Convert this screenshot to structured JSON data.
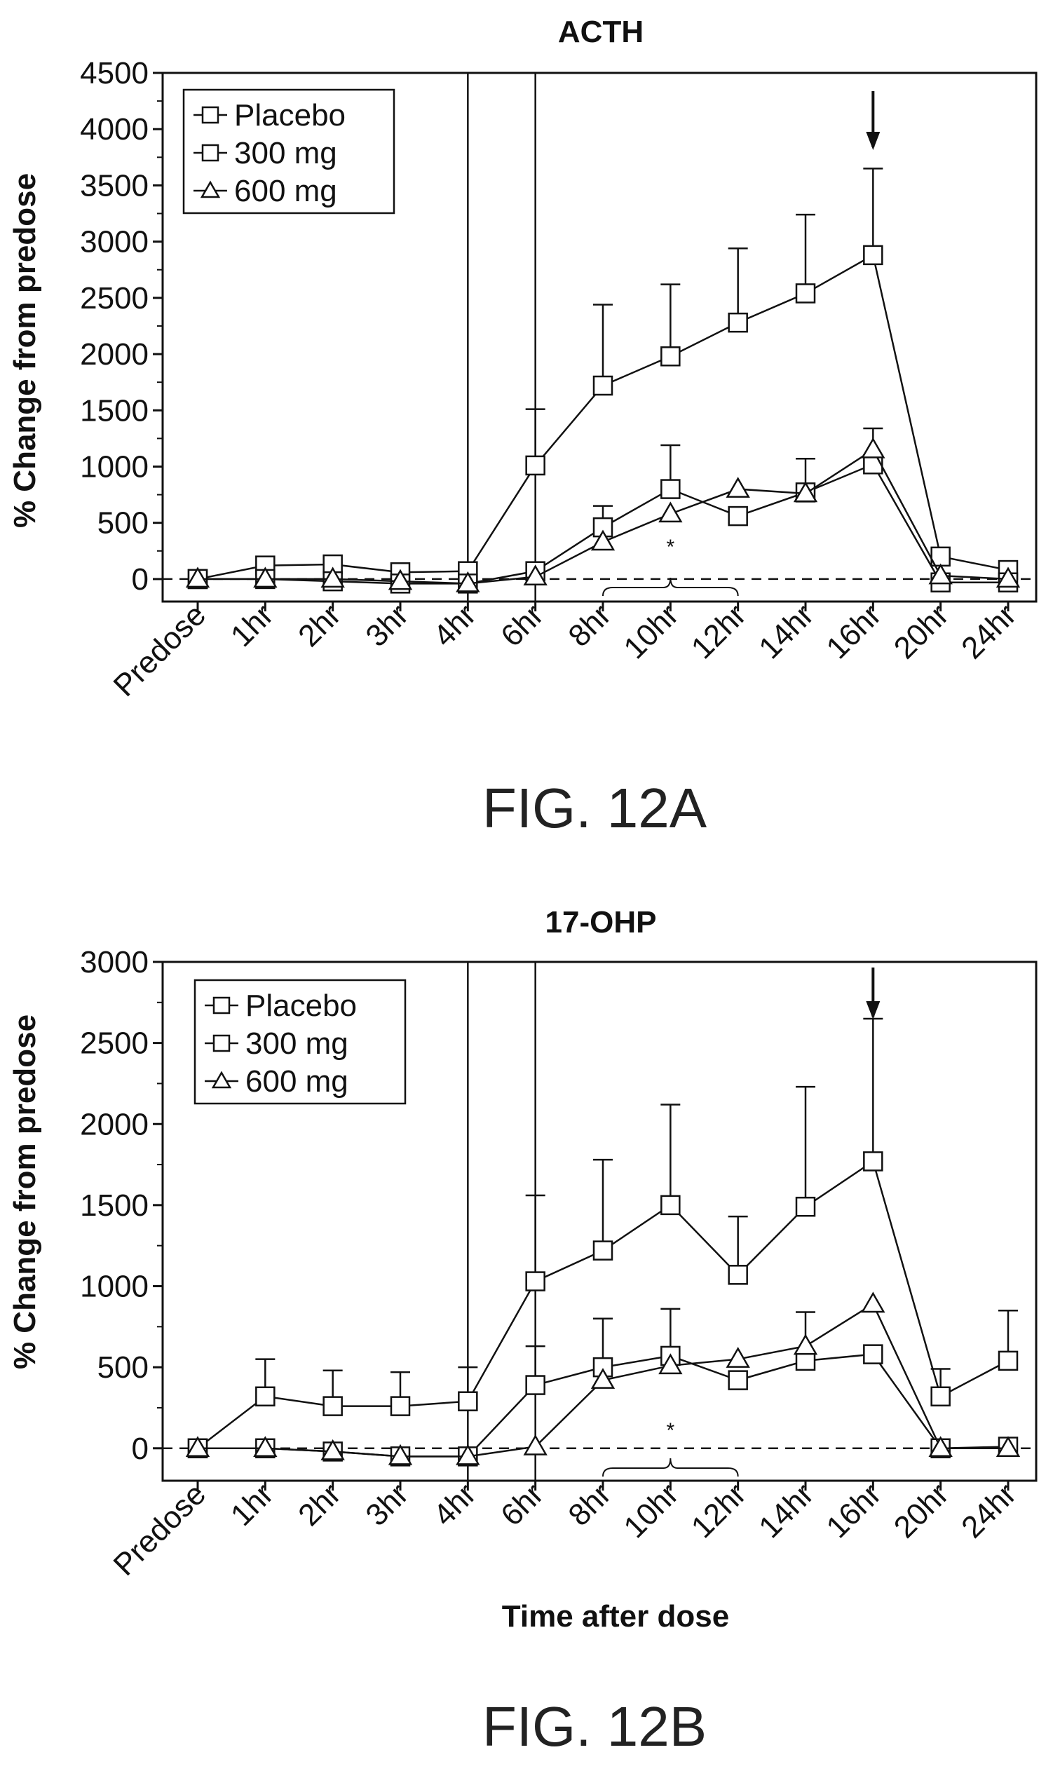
{
  "chart_data": [
    {
      "type": "line",
      "title": "ACTH",
      "xlabel": "",
      "ylabel": "% Change from predose",
      "ylim": [
        0,
        4500
      ],
      "yticks": [
        0,
        500,
        1000,
        1500,
        2000,
        2500,
        3000,
        3500,
        4000,
        4500
      ],
      "categories": [
        "Predose",
        "1hr",
        "2hr",
        "3hr",
        "4hr",
        "6hr",
        "8hr",
        "10hr",
        "12hr",
        "14hr",
        "16hr",
        "20hr",
        "24hr"
      ],
      "legend_position": "top-left",
      "figure_label": "FIG. 12A",
      "annotation": "*",
      "series": [
        {
          "name": "Placebo",
          "marker": "square",
          "values": [
            0,
            120,
            130,
            60,
            70,
            1010,
            1720,
            1980,
            2280,
            2540,
            2880,
            200,
            80
          ],
          "error": [
            0,
            0,
            0,
            0,
            0,
            500,
            720,
            640,
            660,
            700,
            770,
            0,
            0
          ]
        },
        {
          "name": "300 mg",
          "marker": "square",
          "values": [
            0,
            0,
            -20,
            -40,
            -40,
            70,
            460,
            800,
            560,
            770,
            1020,
            -30,
            -30
          ],
          "error": [
            0,
            0,
            0,
            0,
            0,
            0,
            190,
            390,
            0,
            300,
            0,
            0,
            0
          ]
        },
        {
          "name": "600 mg",
          "marker": "triangle",
          "values": [
            0,
            0,
            0,
            -20,
            -40,
            20,
            330,
            580,
            800,
            760,
            1150,
            30,
            0
          ],
          "error": [
            0,
            0,
            0,
            0,
            0,
            0,
            0,
            0,
            0,
            0,
            190,
            0,
            0
          ]
        }
      ]
    },
    {
      "type": "line",
      "title": "17-OHP",
      "xlabel": "Time after dose",
      "ylabel": "% Change from predose",
      "ylim": [
        0,
        3000
      ],
      "yticks": [
        0,
        500,
        1000,
        1500,
        2000,
        2500,
        3000
      ],
      "categories": [
        "Predose",
        "1hr",
        "2hr",
        "3hr",
        "4hr",
        "6hr",
        "8hr",
        "10hr",
        "12hr",
        "14hr",
        "16hr",
        "20hr",
        "24hr"
      ],
      "legend_position": "top-left",
      "figure_label": "FIG. 12B",
      "annotation": "*",
      "series": [
        {
          "name": "Placebo",
          "marker": "square",
          "values": [
            0,
            320,
            260,
            260,
            290,
            1030,
            1220,
            1500,
            1070,
            1490,
            1770,
            320,
            540
          ],
          "error": [
            0,
            230,
            220,
            210,
            210,
            530,
            560,
            620,
            360,
            740,
            880,
            170,
            310
          ]
        },
        {
          "name": "300 mg",
          "marker": "square",
          "values": [
            0,
            0,
            -20,
            -50,
            -50,
            390,
            500,
            570,
            420,
            540,
            580,
            0,
            10
          ],
          "error": [
            0,
            0,
            0,
            0,
            0,
            240,
            300,
            290,
            0,
            300,
            0,
            0,
            0
          ]
        },
        {
          "name": "600 mg",
          "marker": "triangle",
          "values": [
            0,
            0,
            -20,
            -50,
            -50,
            10,
            420,
            510,
            550,
            630,
            890,
            0,
            0
          ],
          "error": [
            0,
            0,
            0,
            0,
            0,
            0,
            0,
            0,
            0,
            0,
            0,
            0,
            0
          ]
        }
      ]
    }
  ]
}
